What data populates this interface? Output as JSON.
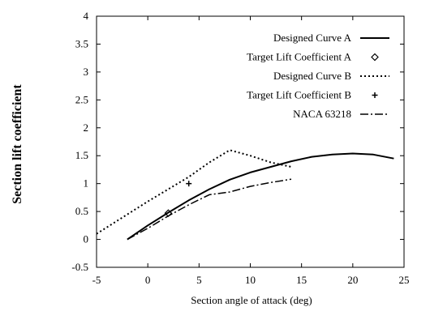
{
  "chart_data": {
    "type": "line",
    "title": "",
    "xlabel": "Section angle of attack (deg)",
    "ylabel": "Section lift coefficient",
    "xlim": [
      -5,
      25
    ],
    "ylim": [
      -0.5,
      4
    ],
    "xticks": [
      -5,
      0,
      5,
      10,
      15,
      20,
      25
    ],
    "yticks": [
      -0.5,
      0,
      0.5,
      1,
      1.5,
      2,
      2.5,
      3,
      3.5,
      4
    ],
    "xtick_labels": [
      "-5",
      "0",
      "5",
      "10",
      "15",
      "20",
      "25"
    ],
    "ytick_labels": [
      "-0.5",
      "0",
      "0.5",
      "1",
      "1.5",
      "2",
      "2.5",
      "3",
      "3.5",
      "4"
    ],
    "grid": false,
    "legend_position": "top-right",
    "series": [
      {
        "name": "Designed Curve A",
        "style": "solid",
        "stroke_width": 2,
        "x": [
          -2,
          0,
          2,
          4,
          6,
          8,
          10,
          12,
          14,
          16,
          18,
          20,
          22,
          24
        ],
        "y": [
          0.0,
          0.25,
          0.48,
          0.7,
          0.9,
          1.07,
          1.2,
          1.3,
          1.4,
          1.48,
          1.52,
          1.54,
          1.52,
          1.45
        ]
      },
      {
        "name": "Target Lift Coefficient A",
        "style": "marker-diamond",
        "x": [
          2
        ],
        "y": [
          0.47
        ]
      },
      {
        "name": "Designed Curve B",
        "style": "dotted",
        "stroke_width": 2,
        "x": [
          -5,
          0,
          4,
          6,
          8,
          10,
          12,
          14
        ],
        "y": [
          0.1,
          0.68,
          1.12,
          1.38,
          1.6,
          1.5,
          1.38,
          1.3
        ]
      },
      {
        "name": "Target Lift Coefficient B",
        "style": "marker-plus",
        "x": [
          4
        ],
        "y": [
          1.0
        ]
      },
      {
        "name": "NACA 63218",
        "style": "dashdot",
        "stroke_width": 1.5,
        "x": [
          -2,
          0,
          2,
          4,
          6,
          8,
          10,
          12,
          14
        ],
        "y": [
          0.0,
          0.2,
          0.42,
          0.62,
          0.8,
          0.85,
          0.95,
          1.02,
          1.08
        ]
      }
    ]
  }
}
